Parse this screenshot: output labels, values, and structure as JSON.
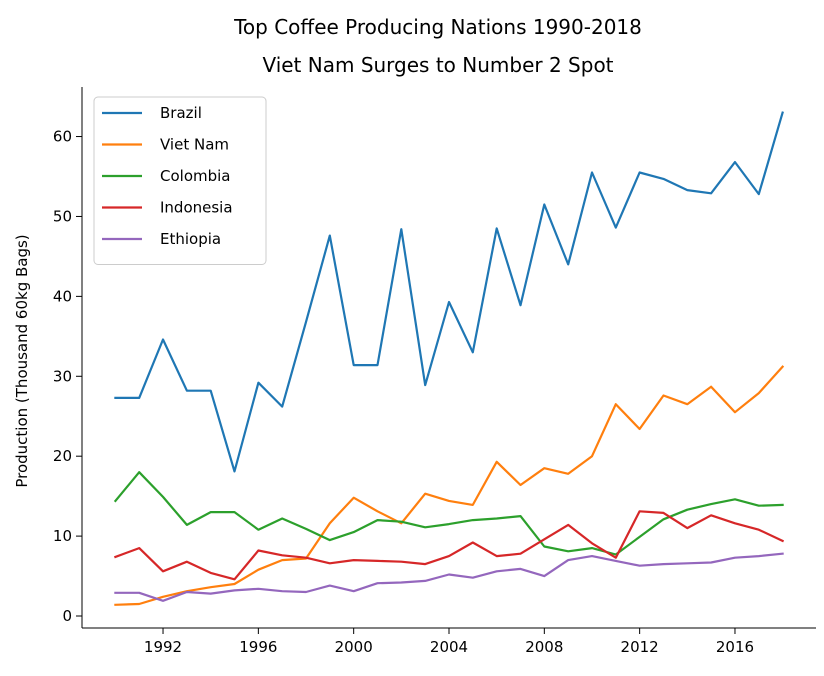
{
  "chart_data": {
    "type": "line",
    "title": "Top Coffee Producing Nations 1990-2018",
    "subtitle": "Viet Nam Surges to Number 2 Spot",
    "xlabel": "",
    "ylabel": "Production (Thousand 60kg Bags)",
    "xlim": [
      1988.6,
      2019.4
    ],
    "ylim": [
      -1.5,
      66.2
    ],
    "x_ticks": [
      1992,
      1996,
      2000,
      2004,
      2008,
      2012,
      2016
    ],
    "y_ticks": [
      0,
      10,
      20,
      30,
      40,
      50,
      60
    ],
    "grid": false,
    "legend_position": "top-left",
    "x": [
      1990,
      1991,
      1992,
      1993,
      1994,
      1995,
      1996,
      1997,
      1998,
      1999,
      2000,
      2001,
      2002,
      2003,
      2004,
      2005,
      2006,
      2007,
      2008,
      2009,
      2010,
      2011,
      2012,
      2013,
      2014,
      2015,
      2016,
      2017,
      2018
    ],
    "series": [
      {
        "name": "Brazil",
        "color": "#1f77b4",
        "values": [
          27.3,
          27.3,
          34.6,
          28.2,
          28.2,
          18.1,
          29.2,
          26.2,
          36.8,
          47.6,
          31.4,
          31.4,
          48.4,
          28.9,
          39.3,
          33.0,
          48.5,
          38.9,
          51.5,
          44.0,
          55.5,
          48.6,
          55.5,
          54.7,
          53.3,
          52.9,
          56.8,
          52.8,
          63.0
        ]
      },
      {
        "name": "Viet Nam",
        "color": "#ff7f0e",
        "values": [
          1.4,
          1.5,
          2.4,
          3.1,
          3.6,
          4.0,
          5.8,
          7.0,
          7.2,
          11.6,
          14.8,
          13.1,
          11.6,
          15.3,
          14.4,
          13.9,
          19.3,
          16.4,
          18.5,
          17.8,
          20.0,
          26.5,
          23.4,
          27.6,
          26.5,
          28.7,
          25.5,
          27.9,
          31.2
        ]
      },
      {
        "name": "Colombia",
        "color": "#2ca02c",
        "values": [
          14.4,
          18.0,
          14.9,
          11.4,
          13.0,
          13.0,
          10.8,
          12.2,
          10.9,
          9.5,
          10.5,
          12.0,
          11.8,
          11.1,
          11.5,
          12.0,
          12.2,
          12.5,
          8.7,
          8.1,
          8.5,
          7.7,
          9.9,
          12.1,
          13.3,
          14.0,
          14.6,
          13.8,
          13.9
        ]
      },
      {
        "name": "Indonesia",
        "color": "#d62728",
        "values": [
          7.4,
          8.5,
          5.6,
          6.8,
          5.4,
          4.6,
          8.2,
          7.6,
          7.3,
          6.6,
          7.0,
          6.9,
          6.8,
          6.5,
          7.5,
          9.2,
          7.5,
          7.8,
          9.6,
          11.4,
          9.1,
          7.3,
          13.1,
          12.9,
          11.0,
          12.6,
          11.6,
          10.8,
          9.4
        ]
      },
      {
        "name": "Ethiopia",
        "color": "#9467bd",
        "values": [
          2.9,
          2.9,
          1.9,
          3.0,
          2.8,
          3.2,
          3.4,
          3.1,
          3.0,
          3.8,
          3.1,
          4.1,
          4.2,
          4.4,
          5.2,
          4.8,
          5.6,
          5.9,
          5.0,
          7.0,
          7.5,
          6.9,
          6.3,
          6.5,
          6.6,
          6.7,
          7.3,
          7.5,
          7.8
        ]
      }
    ]
  }
}
